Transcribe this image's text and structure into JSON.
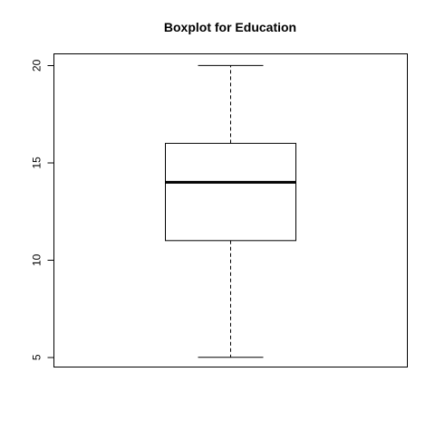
{
  "chart_data": {
    "type": "boxplot",
    "title": "Boxplot for  Education",
    "xlabel": "",
    "ylabel": "",
    "ylim": [
      4.5,
      20.6
    ],
    "yticks": [
      5,
      10,
      15,
      20
    ],
    "grid": false,
    "series": [
      {
        "min": 5,
        "q1": 11,
        "median": 14,
        "q3": 16,
        "max": 20
      }
    ]
  }
}
